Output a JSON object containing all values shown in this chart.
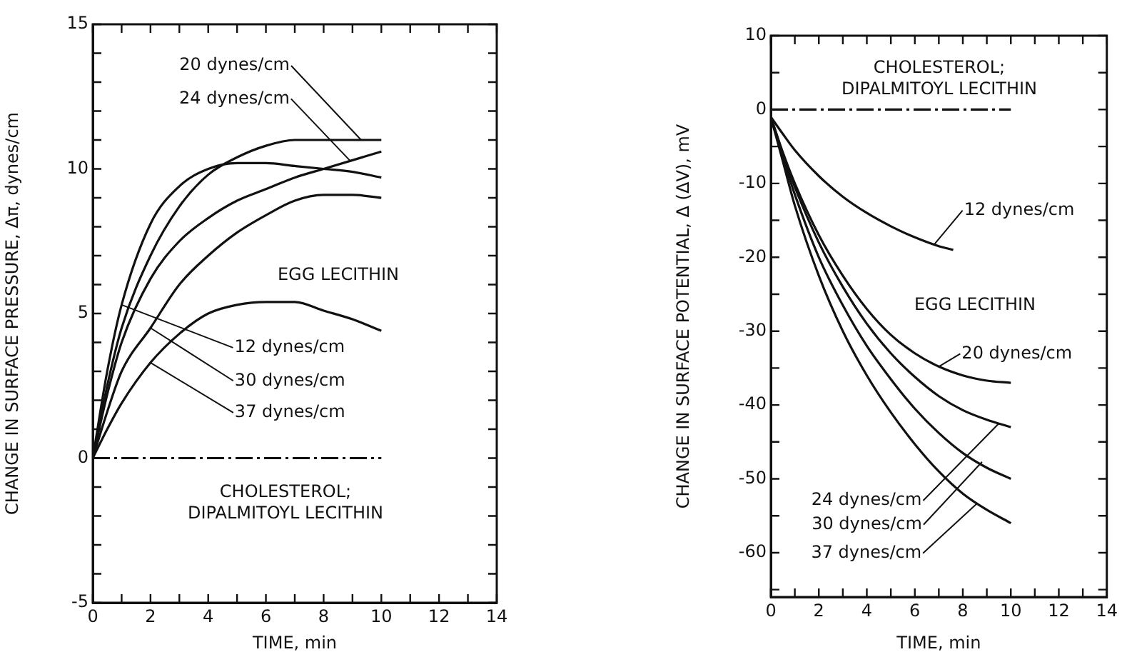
{
  "chart_data": [
    {
      "type": "line",
      "xlabel": "TIME, min",
      "ylabel": "CHANGE IN SURFACE PRESSURE, Δπ, dynes/cm",
      "xlim": [
        0,
        14
      ],
      "ylim": [
        -5,
        15
      ],
      "xticks": [
        0,
        {
          "value": 1,
          "label": null
        },
        2,
        {
          "value": 3,
          "label": null
        },
        4,
        {
          "value": 5,
          "label": null
        },
        6,
        {
          "value": 7,
          "label": null
        },
        8,
        {
          "value": 9,
          "label": null
        },
        10,
        {
          "value": 11,
          "label": null
        },
        12,
        {
          "value": 13,
          "label": null
        },
        14
      ],
      "yticks": [
        -5,
        {
          "value": -4,
          "label": null
        },
        {
          "value": -3,
          "label": null
        },
        {
          "value": -2,
          "label": null
        },
        {
          "value": -1,
          "label": null
        },
        0,
        {
          "value": 1,
          "label": null
        },
        {
          "value": 2,
          "label": null
        },
        {
          "value": 3,
          "label": null
        },
        {
          "value": 4,
          "label": null
        },
        5,
        {
          "value": 6,
          "label": null
        },
        {
          "value": 7,
          "label": null
        },
        {
          "value": 8,
          "label": null
        },
        {
          "value": 9,
          "label": null
        },
        10,
        {
          "value": 11,
          "label": null
        },
        {
          "value": 12,
          "label": null
        },
        {
          "value": 13,
          "label": null
        },
        {
          "value": 14,
          "label": null
        },
        15
      ],
      "grid": false,
      "legend": false,
      "marker": "none",
      "series": [
        {
          "color": "#111111",
          "x": [
            0,
            0.5,
            1,
            2,
            3,
            4,
            5,
            6,
            7,
            8,
            9,
            10
          ],
          "values": [
            0,
            3,
            5.3,
            8.1,
            9.4,
            10,
            10.2,
            10.2,
            10.1,
            10,
            9.9,
            9.7
          ]
        },
        {
          "color": "#111111",
          "x": [
            0,
            0.5,
            1,
            2,
            3,
            4,
            5,
            6,
            7,
            8,
            9,
            10
          ],
          "values": [
            0,
            2.5,
            4.5,
            7,
            8.7,
            9.8,
            10.4,
            10.8,
            11,
            11,
            11,
            11
          ]
        },
        {
          "color": "#111111",
          "x": [
            0,
            0.5,
            1,
            2,
            3,
            4,
            5,
            6,
            7,
            8,
            9,
            10
          ],
          "values": [
            0,
            2.2,
            4,
            6.2,
            7.5,
            8.3,
            8.9,
            9.3,
            9.7,
            10,
            10.3,
            10.6
          ]
        },
        {
          "color": "#111111",
          "x": [
            0,
            0.5,
            1,
            2,
            3,
            4,
            5,
            6,
            7,
            8,
            9,
            10
          ],
          "values": [
            0,
            1.6,
            3,
            4.5,
            6,
            7,
            7.8,
            8.4,
            8.9,
            9.1,
            9.1,
            9
          ]
        },
        {
          "color": "#111111",
          "x": [
            0,
            0.5,
            1,
            2,
            3,
            4,
            5,
            6,
            7,
            8,
            9,
            10
          ],
          "values": [
            0,
            1,
            1.9,
            3.3,
            4.3,
            5,
            5.3,
            5.4,
            5.4,
            5.1,
            4.8,
            4.4
          ]
        },
        {
          "color": "#111111",
          "x": [
            0,
            10
          ],
          "values": [
            0,
            0
          ],
          "line_style": "dashed"
        }
      ],
      "annotations": [
        {
          "text": "20 dynes/cm",
          "x": 9.3,
          "y": 11
        },
        {
          "text": "24 dynes/cm",
          "x": 8.9,
          "y": 10.3
        },
        {
          "text": "12 dynes/cm",
          "x": 1,
          "y": 5.3
        },
        {
          "text": "30 dynes/cm",
          "x": 2,
          "y": 4.5
        },
        {
          "text": "37 dynes/cm",
          "x": 2,
          "y": 3.3
        },
        "EGG LECITHIN",
        "CHOLESTEROL; DIPALMITOYL LECITHIN"
      ]
    },
    {
      "type": "line",
      "xlabel": "TIME, min",
      "ylabel": "CHANGE IN SURFACE POTENTIAL, Δ (ΔV), mV",
      "xlim": [
        0,
        14
      ],
      "ylim": [
        -66,
        10
      ],
      "xticks": [
        0,
        {
          "value": 1,
          "label": null
        },
        2,
        {
          "value": 3,
          "label": null
        },
        4,
        {
          "value": 5,
          "label": null
        },
        6,
        {
          "value": 7,
          "label": null
        },
        8,
        {
          "value": 9,
          "label": null
        },
        10,
        {
          "value": 11,
          "label": null
        },
        12,
        {
          "value": 13,
          "label": null
        },
        14
      ],
      "yticks": [
        {
          "value": -65,
          "label": null
        },
        -60,
        {
          "value": -55,
          "label": null
        },
        -50,
        {
          "value": -45,
          "label": null
        },
        -40,
        {
          "value": -35,
          "label": null
        },
        -30,
        {
          "value": -25,
          "label": null
        },
        -20,
        {
          "value": -15,
          "label": null
        },
        -10,
        {
          "value": -5,
          "label": null
        },
        0,
        {
          "value": 5,
          "label": null
        },
        10
      ],
      "grid": false,
      "legend": false,
      "marker": "none",
      "series": [
        {
          "color": "#111111",
          "x": [
            0,
            0.5,
            1,
            2,
            3,
            4,
            5,
            6,
            7,
            7.6
          ],
          "values": [
            -1,
            -3.3,
            -5.5,
            -9,
            -11.8,
            -14,
            -15.8,
            -17.3,
            -18.5,
            -19
          ]
        },
        {
          "color": "#111111",
          "x": [
            0,
            0.5,
            1,
            2,
            3,
            4,
            5,
            6,
            7,
            8,
            9,
            10
          ],
          "values": [
            -1,
            -5.8,
            -10,
            -17,
            -22.5,
            -27,
            -30.5,
            -33,
            -34.8,
            -36,
            -36.7,
            -37
          ]
        },
        {
          "color": "#111111",
          "x": [
            0,
            0.5,
            1,
            2,
            3,
            4,
            5,
            6,
            7,
            8,
            9,
            10
          ],
          "values": [
            -1,
            -6,
            -10.5,
            -18,
            -24,
            -29,
            -33,
            -36.2,
            -38.8,
            -40.7,
            -42,
            -43
          ]
        },
        {
          "color": "#111111",
          "x": [
            0,
            0.5,
            1,
            2,
            3,
            4,
            5,
            6,
            7,
            8,
            9,
            10
          ],
          "values": [
            -1,
            -6.5,
            -11.5,
            -20,
            -26.5,
            -32,
            -36.5,
            -40.5,
            -43.8,
            -46.5,
            -48.5,
            -50
          ]
        },
        {
          "color": "#111111",
          "x": [
            0,
            0.5,
            1,
            2,
            3,
            4,
            5,
            6,
            7,
            8,
            9,
            10
          ],
          "values": [
            -1,
            -7,
            -13,
            -22.5,
            -30,
            -36,
            -41,
            -45.3,
            -49,
            -52,
            -54.2,
            -56
          ]
        },
        {
          "color": "#111111",
          "x": [
            0,
            10
          ],
          "values": [
            0,
            0
          ],
          "line_style": "dashed"
        }
      ],
      "annotations": [
        "CHOLESTEROL; DIPALMITOYL LECITHIN",
        {
          "text": "12 dynes/cm",
          "x": 6.8,
          "y": -18.3
        },
        "EGG LECITHIN",
        {
          "text": "20 dynes/cm",
          "x": 7,
          "y": -34.8
        },
        {
          "text": "24 dynes/cm",
          "x": 9.5,
          "y": -42.5
        },
        {
          "text": "30 dynes/cm",
          "x": 8.8,
          "y": -47.7
        },
        {
          "text": "37 dynes/cm",
          "x": 8.6,
          "y": -53.3
        }
      ]
    }
  ]
}
